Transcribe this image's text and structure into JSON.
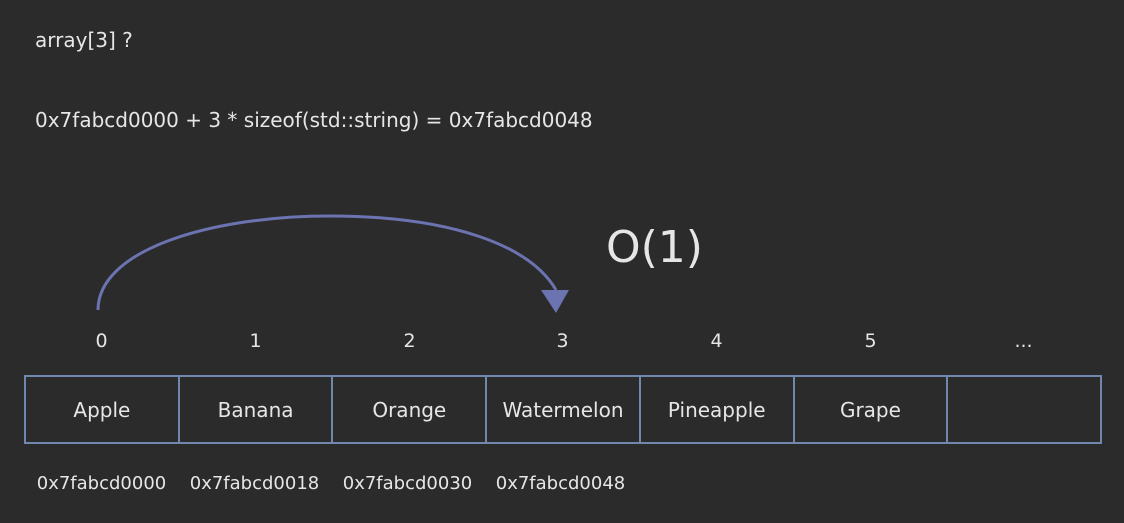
{
  "question": "array[3] ?",
  "formula": "0x7fabcd0000 + 3 * sizeof(std::string) = 0x7fabcd0048",
  "complexity": "O(1)",
  "arrow_color": "#6b73b0",
  "cell_border_color": "#7088ad",
  "indices": [
    "0",
    "1",
    "2",
    "3",
    "4",
    "5",
    "..."
  ],
  "cells": [
    "Apple",
    "Banana",
    "Orange",
    "Watermelon",
    "Pineapple",
    "Grape",
    ""
  ],
  "addresses": [
    "0x7fabcd0000",
    "0x7fabcd0018",
    "0x7fabcd0030",
    "0x7fabcd0048"
  ]
}
